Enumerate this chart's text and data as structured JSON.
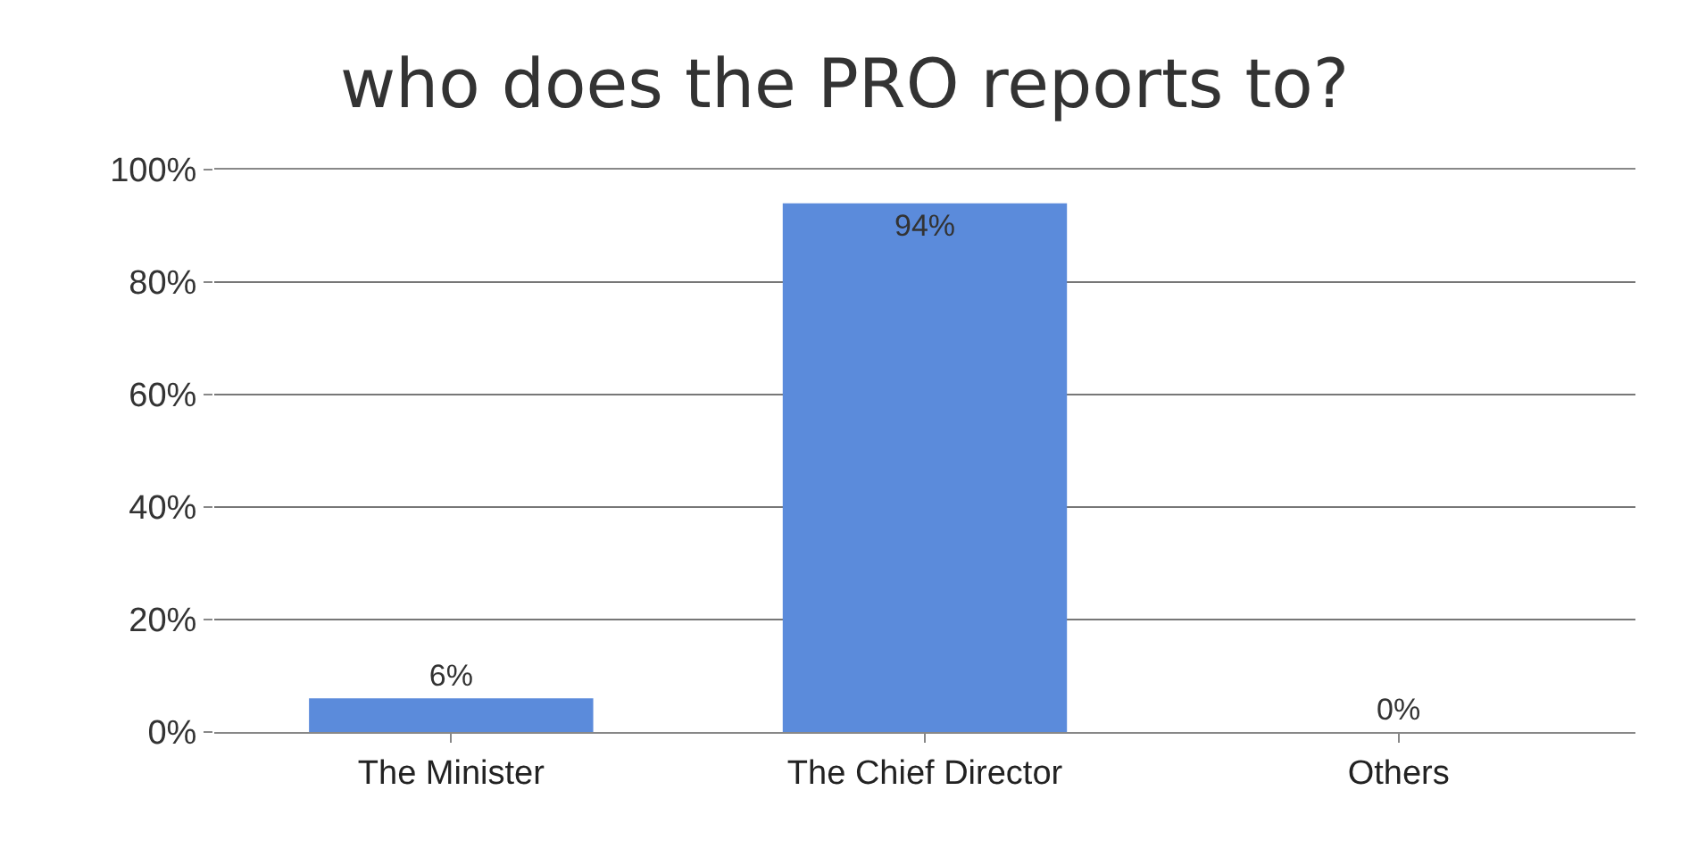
{
  "chart_data": {
    "type": "bar",
    "title": "who does the PRO reports to?",
    "categories": [
      "The Minister",
      "The Chief Director",
      "Others"
    ],
    "values": [
      6,
      94,
      0
    ],
    "value_labels": [
      "6%",
      "94%",
      "0%"
    ],
    "color": "#5b8bdb",
    "ylim": [
      0,
      100
    ],
    "yticks": [
      {
        "value": 0,
        "label": "0%"
      },
      {
        "value": 20,
        "label": "20%"
      },
      {
        "value": 40,
        "label": "40%"
      },
      {
        "value": 60,
        "label": "60%"
      },
      {
        "value": 80,
        "label": "80%"
      },
      {
        "value": 100,
        "label": "100%"
      }
    ],
    "grid": "y"
  }
}
